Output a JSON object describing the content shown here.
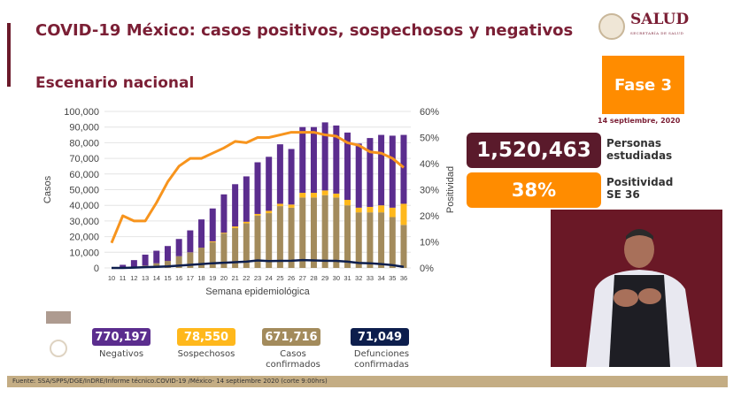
{
  "header": {
    "title": "COVID-19 México: casos positivos, sospechosos y negativos",
    "subtitle": "Escenario nacional"
  },
  "logo": {
    "name": "SALUD",
    "tagline": "SECRETARÍA DE SALUD"
  },
  "phase": {
    "label": "Fase 3",
    "date": "14 septiembre, 2020"
  },
  "kpis": {
    "personas": {
      "value": "1,520,463",
      "label1": "Personas",
      "label2": "estudiadas"
    },
    "positividad": {
      "value": "38%",
      "label1": "Positividad",
      "label2": "SE 36"
    }
  },
  "stats": [
    {
      "value": "770,197",
      "label": "Negativos",
      "color": "#5b2d8e"
    },
    {
      "value": "78,550",
      "label": "Sospechosos",
      "color": "#ffb81c"
    },
    {
      "value": "671,716",
      "label": "Casos confirmados",
      "color": "#a38b5c"
    },
    {
      "value": "71,049",
      "label": "Defunciones confirmadas",
      "color": "#0d1e4d"
    }
  ],
  "footer": "Fuente: SSA/SPPS/DGE/InDRE/Informe técnico.COVID-19 /México- 14 septiembre 2020 (corte 9:00hrs)",
  "colors": {
    "maroon": "#7b1f35",
    "orange": "#ff8c00",
    "negativos": "#5b2d8e",
    "sospechosos": "#ffb81c",
    "confirmados": "#a38b5c",
    "defunciones": "#0d1e4d"
  },
  "chart_data": {
    "type": "bar",
    "stacked": true,
    "xlabel": "Semana epidemiológica",
    "ylabel": "Casos",
    "y2label": "Positividad",
    "ylim": [
      0,
      100000
    ],
    "y2lim": [
      0,
      60
    ],
    "yticks": [
      "0",
      "10,000",
      "20,000",
      "30,000",
      "40,000",
      "50,000",
      "60,000",
      "70,000",
      "80,000",
      "90,000",
      "100,000"
    ],
    "y2ticks": [
      "0%",
      "10%",
      "20%",
      "30%",
      "40%",
      "50%",
      "60%"
    ],
    "grid": true,
    "categories": [
      "10",
      "11",
      "12",
      "13",
      "14",
      "15",
      "16",
      "17",
      "18",
      "19",
      "20",
      "21",
      "22",
      "23",
      "24",
      "25",
      "26",
      "27",
      "28",
      "29",
      "30",
      "31",
      "32",
      "33",
      "34",
      "35",
      "36"
    ],
    "series": [
      {
        "type": "bar",
        "color": "#a38b5c",
        "values": [
          0,
          300,
          700,
          1500,
          3000,
          4500,
          7500,
          10000,
          13000,
          16500,
          22000,
          25500,
          28500,
          33500,
          35000,
          39500,
          38500,
          45000,
          45000,
          46500,
          45000,
          40000,
          35500,
          35500,
          35500,
          32500,
          27500
        ]
      },
      {
        "type": "bar",
        "color": "#ffb81c",
        "values": [
          0,
          0,
          0,
          0,
          0,
          0,
          0,
          0,
          0,
          500,
          500,
          1000,
          1000,
          1000,
          1500,
          1500,
          2000,
          3000,
          3000,
          3000,
          2500,
          3500,
          3000,
          3500,
          4500,
          6000,
          13500
        ]
      },
      {
        "type": "bar",
        "color": "#5b2d8e",
        "values": [
          0,
          1700,
          4300,
          7000,
          8000,
          9500,
          11000,
          14000,
          18000,
          21000,
          24500,
          27000,
          29000,
          33000,
          34500,
          38000,
          35500,
          42000,
          42000,
          43500,
          43500,
          43000,
          41000,
          44000,
          45000,
          46000,
          44000
        ]
      },
      {
        "type": "line",
        "axis": "left",
        "color": "#0d1e4d",
        "values": [
          0,
          0,
          200,
          500,
          700,
          1000,
          1500,
          2000,
          2500,
          3000,
          3300,
          3700,
          4000,
          4800,
          4400,
          4500,
          4600,
          5000,
          4800,
          4600,
          4500,
          4000,
          3200,
          3000,
          2500,
          1800,
          700
        ]
      },
      {
        "type": "line",
        "axis": "right",
        "color": "#f7941d",
        "values": [
          9.6,
          20,
          18,
          18,
          25,
          33,
          39,
          42,
          42,
          44,
          46,
          48.5,
          48,
          50,
          50,
          51,
          52,
          52,
          52,
          51,
          50.5,
          48,
          47,
          44.5,
          44,
          42,
          38.5
        ]
      }
    ]
  }
}
